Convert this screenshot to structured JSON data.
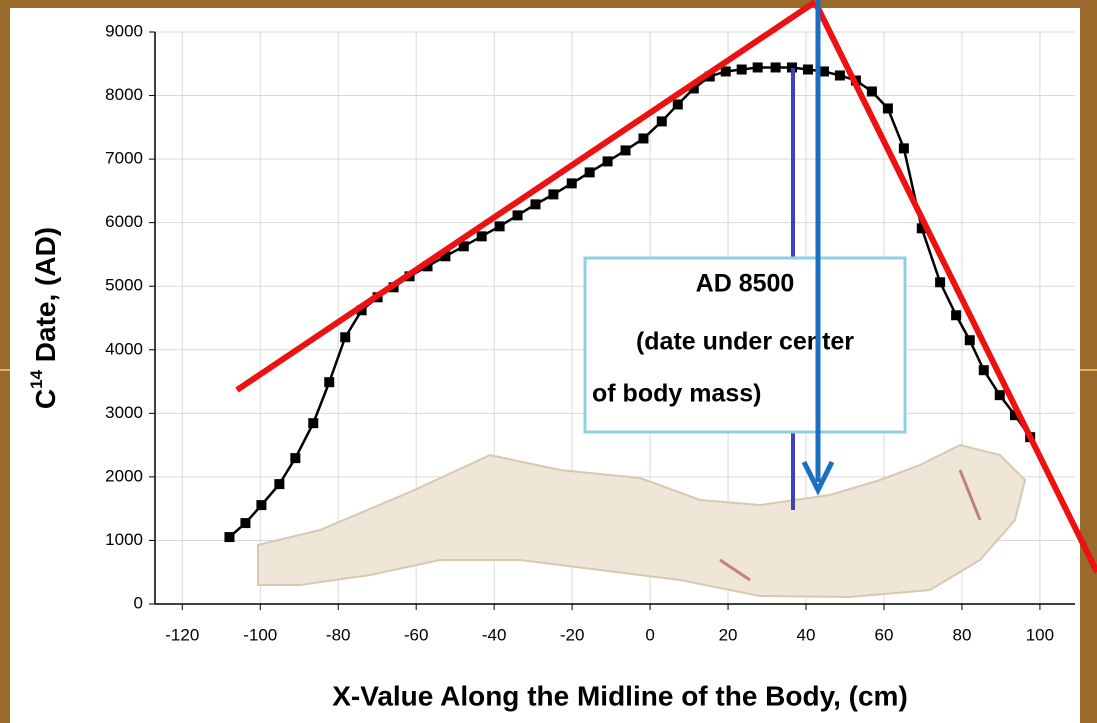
{
  "chart_data": {
    "type": "line",
    "y_label": {
      "base": "C",
      "superscript": "14",
      "rest": " Date, (AD)"
    },
    "x_label": "X-Value Along the Midline of the Body, (cm)",
    "annotation": [
      "AD 8500",
      "(date under center",
      "of body mass)"
    ],
    "color": "#000000",
    "x": [
      -107.9,
      -103.8,
      -99.7,
      -95.1,
      -91.0,
      -86.4,
      -82.3,
      -78.2,
      -74.0,
      -69.9,
      -65.8,
      -61.7,
      -57.1,
      -52.5,
      -47.8,
      -43.2,
      -38.6,
      -34.0,
      -29.4,
      -24.8,
      -20.1,
      -15.5,
      -10.9,
      -6.3,
      -1.7,
      3.0,
      7.1,
      11.2,
      15.3,
      19.4,
      23.5,
      27.6,
      32.2,
      36.4,
      40.5,
      44.6,
      48.7,
      52.8,
      56.9,
      61.0,
      65.1,
      69.7,
      74.4,
      78.5,
      82.0,
      85.6,
      89.7,
      93.6,
      97.5
    ],
    "values": [
      1053,
      1273,
      1556,
      1886,
      2295,
      2845,
      3490,
      4197,
      4621,
      4826,
      4983,
      5156,
      5313,
      5471,
      5628,
      5785,
      5942,
      6115,
      6288,
      6445,
      6618,
      6791,
      6964,
      7137,
      7325,
      7593,
      7860,
      8111,
      8300,
      8379,
      8410,
      8442,
      8442,
      8442,
      8410,
      8379,
      8316,
      8237,
      8064,
      7797,
      7169,
      5911,
      5062,
      4543,
      4150,
      3679,
      3286,
      2971,
      2625
    ],
    "xlim": [
      -127,
      109
    ],
    "ylim": [
      0,
      9000
    ],
    "xticks": [
      -120,
      -100,
      -80,
      -60,
      -40,
      -20,
      0,
      20,
      40,
      60,
      80,
      100
    ],
    "yticks": [
      0,
      1000,
      2000,
      3000,
      4000,
      5000,
      6000,
      7000,
      8000,
      9000
    ],
    "grid": true
  }
}
